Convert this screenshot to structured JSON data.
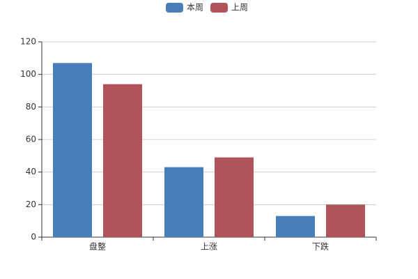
{
  "chart_data": {
    "type": "bar",
    "categories": [
      "盘整",
      "上涨",
      "下跌"
    ],
    "series": [
      {
        "name": "本周",
        "color": "#4a7ebb",
        "values": [
          107,
          43,
          13
        ]
      },
      {
        "name": "上周",
        "color": "#b0535a",
        "values": [
          94,
          49,
          20
        ]
      }
    ],
    "ylim": [
      0,
      120
    ],
    "yticks": [
      0,
      20,
      40,
      60,
      80,
      100,
      120
    ],
    "grid": true,
    "legend": "top"
  }
}
